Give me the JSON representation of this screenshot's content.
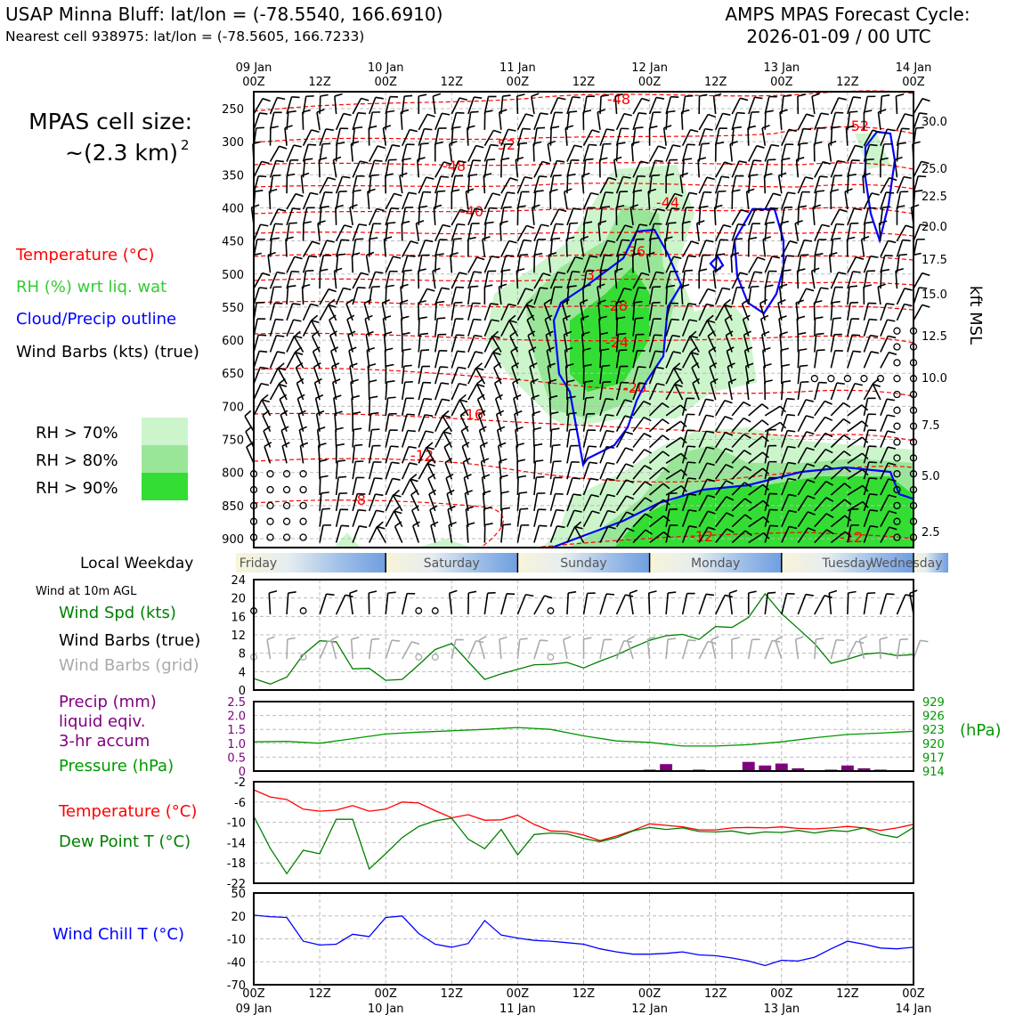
{
  "header": {
    "title_left": "USAP Minna Bluff: lat/lon = (-78.5540, 166.6910)",
    "subtitle_left": "Nearest cell 938975: lat/lon = (-78.5605, 166.7233)",
    "title_right_1": "AMPS MPAS Forecast Cycle:",
    "title_right_2": "2026-01-09 / 00 UTC"
  },
  "cell_size": {
    "line1": "MPAS cell size:",
    "line2": "~(2.3 km)",
    "sup": "2"
  },
  "legend": {
    "temperature": "Temperature (°C)",
    "rh": "RH (%) wrt liq. wat",
    "cloud": "Cloud/Precip outline",
    "barbs": "Wind Barbs (kts) (true)",
    "rh70": "RH > 70%",
    "rh80": "RH > 80%",
    "rh90": "RH > 90%"
  },
  "colors": {
    "temperature": "#ff0000",
    "rh_text": "#33cc33",
    "cloud": "#0000ff",
    "rh70": "#ccf5cc",
    "rh80": "#99e699",
    "rh90": "#33dd33",
    "precip": "#800080",
    "pressure": "#009900",
    "windchill": "#0000ff"
  },
  "time_axis": {
    "top_dates": [
      "09 Jan",
      "",
      "10 Jan",
      "",
      "11 Jan",
      "",
      "12 Jan",
      "",
      "13 Jan",
      "",
      "14 Jan"
    ],
    "hours": [
      "00Z",
      "12Z",
      "00Z",
      "12Z",
      "00Z",
      "12Z",
      "00Z",
      "12Z",
      "00Z",
      "12Z",
      "00Z"
    ],
    "bottom_dates": [
      "09 Jan",
      "",
      "10 Jan",
      "",
      "11 Jan",
      "",
      "12 Jan",
      "",
      "13 Jan",
      "",
      "14 Jan"
    ]
  },
  "weekday": {
    "label": "Local Weekday",
    "days": [
      "Friday",
      "Saturday",
      "Sunday",
      "Monday",
      "Tuesday",
      "Wednesday"
    ]
  },
  "main_panel": {
    "pressure_ticks": [
      250,
      300,
      350,
      400,
      450,
      500,
      550,
      600,
      650,
      700,
      750,
      800,
      850,
      900
    ],
    "kft_ticks": [
      "30.0",
      "25.0",
      "22.5",
      "20.0",
      "17.5",
      "15.0",
      "12.5",
      "10.0",
      "7.5",
      "5.0",
      "2.5"
    ],
    "kft_label": "kft MSL",
    "isotherm_labels": [
      "-48",
      "-52",
      "-52",
      "-48",
      "-44",
      "-40",
      "-36",
      "-32",
      "-28",
      "-24",
      "-20",
      "-16",
      "-12",
      "-8",
      "-12",
      "-12"
    ]
  },
  "wind_panel": {
    "title": "Wind at 10m AGL",
    "label_spd": "Wind Spd (kts)",
    "label_barbs": "Wind Barbs (true)",
    "label_grid": "Wind Barbs (grid)",
    "yticks": [
      "24",
      "20",
      "16",
      "12",
      "8",
      "4",
      "0"
    ]
  },
  "precip_panel": {
    "label1": "Precip (mm)",
    "label2": "liquid eqiv.",
    "label3": "3-hr accum",
    "label4": "Pressure (hPa)",
    "left_ticks": [
      "2.5",
      "2.0",
      "1.5",
      "1.0",
      "0.5",
      "0"
    ],
    "right_ticks": [
      "929",
      "926",
      "923",
      "920",
      "917",
      "914"
    ],
    "unit": "(hPa)"
  },
  "temp_panel": {
    "label_t": "Temperature (°C)",
    "label_td": "Dew Point T (°C)",
    "yticks": [
      "-2",
      "-6",
      "-10",
      "-14",
      "-18",
      "-22"
    ]
  },
  "chill_panel": {
    "label": "Wind Chill T (°C)",
    "yticks": [
      "50",
      "20",
      "-10",
      "-40",
      "-70"
    ]
  },
  "chart_data": [
    {
      "type": "line",
      "title": "Wind at 10m AGL",
      "x_hours": [
        0,
        3,
        6,
        9,
        12,
        15,
        18,
        21,
        24,
        27,
        30,
        33,
        36,
        39,
        42,
        45,
        48,
        51,
        54,
        57,
        60,
        63,
        66,
        69,
        72,
        75,
        78,
        81,
        84,
        87,
        90,
        93,
        96,
        99,
        102,
        105,
        108,
        111,
        114,
        117,
        120
      ],
      "series": [
        {
          "name": "Wind Spd (kts)",
          "values": [
            2.5,
            1.3,
            2.8,
            7.7,
            10.7,
            10.5,
            4.6,
            4.7,
            2.1,
            2.3,
            5.5,
            8.8,
            10.1,
            6.2,
            2.3,
            3.5,
            4.5,
            5.5,
            5.6,
            6.0,
            4.8,
            6.3,
            7.6,
            9.3,
            10.8,
            11.8,
            12.1,
            11.0,
            13.8,
            13.6,
            15.8,
            20.9,
            16.6,
            13.4,
            10.1,
            5.8,
            6.7,
            7.8,
            8.1,
            7.5,
            7.7
          ]
        }
      ],
      "ylim": [
        0,
        24
      ]
    },
    {
      "type": "bar",
      "title": "Precip (mm) liquid eqiv. 3-hr accum",
      "x_hours": [
        72,
        75,
        78,
        81,
        84,
        87,
        90,
        93,
        96,
        99,
        102,
        105,
        108,
        111,
        114
      ],
      "values": [
        0.05,
        0.25,
        0.0,
        0.05,
        0.0,
        0.03,
        0.33,
        0.2,
        0.27,
        0.1,
        0.0,
        0.05,
        0.2,
        0.1,
        0.05
      ],
      "ylim": [
        0,
        2.5
      ]
    },
    {
      "type": "line",
      "title": "Pressure (hPa)",
      "x_hours": [
        0,
        6,
        12,
        18,
        24,
        30,
        36,
        42,
        48,
        54,
        60,
        66,
        72,
        78,
        84,
        90,
        96,
        102,
        108,
        114,
        120
      ],
      "series": [
        {
          "name": "Pressure (hPa)",
          "values": [
            920.3,
            920.4,
            920.0,
            921.0,
            922.0,
            922.4,
            922.7,
            923.0,
            923.4,
            923.0,
            921.6,
            920.5,
            920.2,
            919.4,
            919.4,
            919.7,
            920.3,
            921.2,
            921.9,
            922.2,
            922.6
          ]
        }
      ],
      "ylim": [
        914,
        929
      ]
    },
    {
      "type": "line",
      "title": "Temperature / Dew Point",
      "x_hours": [
        0,
        3,
        6,
        9,
        12,
        15,
        18,
        21,
        24,
        27,
        30,
        33,
        36,
        39,
        42,
        45,
        48,
        51,
        54,
        57,
        60,
        63,
        66,
        69,
        72,
        75,
        78,
        81,
        84,
        87,
        90,
        93,
        96,
        99,
        102,
        105,
        108,
        111,
        114,
        117,
        120
      ],
      "series": [
        {
          "name": "Temperature (°C)",
          "values": [
            -3.6,
            -5.0,
            -5.5,
            -7.4,
            -7.8,
            -7.6,
            -6.7,
            -7.8,
            -7.4,
            -6.0,
            -6.2,
            -7.7,
            -9.1,
            -8.5,
            -9.6,
            -9.5,
            -8.6,
            -10.4,
            -11.7,
            -11.8,
            -12.5,
            -13.6,
            -12.7,
            -11.6,
            -10.3,
            -10.6,
            -10.9,
            -11.5,
            -11.5,
            -11.1,
            -11.0,
            -11.1,
            -10.9,
            -11.2,
            -11.3,
            -11.1,
            -10.8,
            -11.1,
            -11.6,
            -11.1,
            -10.4
          ]
        },
        {
          "name": "Dew Point T (°C)",
          "values": [
            -8.8,
            -15.1,
            -20.1,
            -15.5,
            -16.2,
            -9.4,
            -9.4,
            -19.2,
            -16.2,
            -13.0,
            -10.8,
            -9.7,
            -9.2,
            -13.3,
            -15.2,
            -11.4,
            -16.4,
            -12.4,
            -12.1,
            -12.3,
            -13.2,
            -13.8,
            -13.0,
            -11.7,
            -11.0,
            -11.4,
            -11.1,
            -11.8,
            -11.9,
            -11.7,
            -12.3,
            -11.9,
            -12.0,
            -11.6,
            -12.1,
            -11.6,
            -11.8,
            -11.1,
            -12.4,
            -13.0,
            -11.0
          ]
        }
      ],
      "ylim": [
        -22,
        -2
      ]
    },
    {
      "type": "line",
      "title": "Wind Chill T (°C)",
      "x_hours": [
        0,
        3,
        6,
        9,
        12,
        15,
        18,
        21,
        24,
        27,
        30,
        33,
        36,
        39,
        42,
        45,
        48,
        51,
        54,
        57,
        60,
        63,
        66,
        69,
        72,
        75,
        78,
        81,
        84,
        87,
        90,
        93,
        96,
        99,
        102,
        105,
        108,
        111,
        114,
        117,
        120
      ],
      "series": [
        {
          "name": "Wind Chill T (°C)",
          "values": [
            21,
            19,
            18,
            -13,
            -18,
            -17,
            -4,
            -7,
            18,
            20,
            -3,
            -17,
            -21,
            -16,
            14,
            -5,
            -9,
            -12,
            -13,
            -15,
            -17,
            -23,
            -27,
            -30,
            -30,
            -29,
            -27,
            -31,
            -32,
            -35,
            -39,
            -45,
            -38,
            -39,
            -34,
            -23,
            -13,
            -17,
            -22,
            -23,
            -21
          ],
          "hidden_note": ""
        }
      ],
      "ylim": [
        -70,
        50
      ]
    }
  ]
}
